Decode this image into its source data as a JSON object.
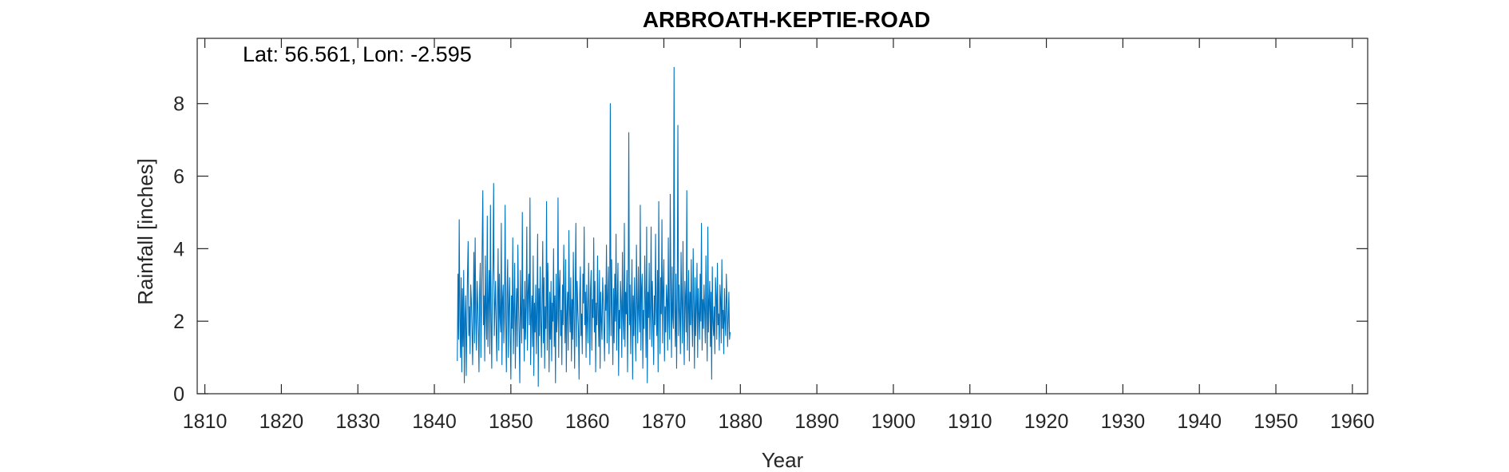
{
  "chart_data": {
    "type": "line",
    "title": "ARBROATH-KEPTIE-ROAD",
    "annotation": "Lat: 56.561, Lon: -2.595",
    "xlabel": "Year",
    "ylabel": "Rainfall [inches]",
    "xlim": [
      1809,
      1962
    ],
    "ylim": [
      0,
      9.8
    ],
    "x_ticks": [
      1810,
      1820,
      1830,
      1840,
      1850,
      1860,
      1870,
      1880,
      1890,
      1900,
      1910,
      1920,
      1930,
      1940,
      1950,
      1960
    ],
    "y_ticks": [
      0,
      2,
      4,
      6,
      8
    ],
    "grid": false,
    "series": [
      {
        "color": "#0072BD",
        "x_start": 1843.0,
        "x_step": 0.08333,
        "values": [
          0.9,
          3.3,
          1.5,
          4.8,
          2.1,
          1.0,
          3.2,
          0.6,
          2.9,
          1.3,
          3.4,
          0.3,
          2.1,
          2.7,
          0.5,
          1.9,
          3.3,
          4.2,
          1.6,
          2.4,
          1.1,
          3.0,
          2.6,
          1.8,
          0.8,
          2.2,
          3.9,
          1.4,
          4.3,
          2.0,
          1.2,
          3.1,
          2.5,
          1.7,
          0.6,
          2.8,
          3.6,
          1.0,
          2.3,
          4.1,
          5.6,
          1.9,
          2.7,
          0.9,
          3.8,
          2.2,
          1.5,
          4.9,
          1.3,
          2.6,
          3.4,
          1.1,
          5.2,
          2.0,
          0.7,
          2.9,
          3.5,
          5.8,
          1.6,
          2.4,
          3.1,
          1.8,
          0.9,
          2.5,
          4.0,
          1.2,
          3.3,
          2.1,
          1.7,
          4.7,
          0.8,
          2.6,
          3.0,
          1.4,
          2.2,
          5.2,
          1.9,
          0.6,
          2.8,
          3.7,
          1.0,
          2.4,
          3.2,
          1.5,
          0.4,
          2.7,
          1.8,
          4.3,
          1.1,
          2.3,
          3.6,
          0.7,
          2.0,
          2.9,
          1.3,
          4.1,
          2.5,
          1.6,
          0.3,
          3.4,
          2.2,
          1.4,
          5.0,
          1.8,
          2.6,
          0.9,
          3.1,
          1.5,
          2.4,
          4.6,
          1.2,
          2.8,
          3.3,
          1.9,
          5.4,
          0.8,
          2.1,
          2.7,
          1.3,
          3.8,
          0.5,
          2.5,
          1.7,
          3.0,
          1.1,
          2.3,
          4.4,
          0.2,
          2.9,
          1.6,
          3.5,
          2.0,
          1.0,
          2.6,
          4.2,
          1.4,
          3.2,
          0.7,
          2.4,
          1.8,
          5.3,
          1.2,
          3.6,
          2.2,
          0.6,
          2.8,
          1.5,
          3.1,
          0.9,
          2.5,
          2.0,
          4.0,
          1.3,
          2.7,
          0.3,
          3.3,
          1.7,
          2.1,
          5.4,
          1.0,
          2.9,
          3.4,
          1.6,
          2.3,
          0.8,
          3.0,
          1.9,
          4.1,
          2.6,
          1.4,
          3.7,
          0.6,
          2.2,
          2.8,
          1.2,
          4.5,
          2.4,
          1.7,
          3.2,
          0.9,
          2.6,
          1.5,
          3.9,
          2.1,
          0.7,
          2.9,
          4.7,
          1.3,
          3.1,
          2.3,
          1.8,
          0.4,
          2.7,
          3.5,
          1.6,
          2.2,
          1.1,
          3.3,
          2.5,
          4.6,
          1.9,
          2.8,
          1.0,
          3.0,
          2.0,
          1.4,
          3.6,
          2.4,
          0.8,
          2.9,
          3.4,
          1.2,
          2.6,
          2.1,
          4.3,
          1.7,
          3.1,
          0.6,
          2.5,
          1.9,
          3.8,
          2.2,
          1.3,
          3.4,
          0.7,
          2.8,
          2.0,
          1.5,
          3.2,
          2.6,
          1.8,
          0.9,
          3.0,
          2.3,
          4.1,
          1.4,
          2.7,
          3.5,
          1.1,
          2.4,
          8.0,
          1.6,
          3.7,
          2.2,
          0.8,
          2.9,
          1.4,
          3.3,
          2.0,
          4.4,
          1.2,
          2.6,
          3.6,
          0.5,
          2.3,
          1.8,
          3.1,
          2.5,
          1.0,
          3.9,
          2.1,
          1.5,
          4.7,
          1.3,
          2.8,
          2.2,
          3.4,
          0.6,
          2.6,
          7.2,
          1.9,
          3.0,
          1.1,
          2.4,
          3.7,
          0.4,
          2.7,
          1.6,
          3.2,
          2.0,
          0.9,
          4.1,
          2.5,
          1.4,
          3.5,
          2.2,
          1.7,
          5.2,
          1.2,
          2.9,
          3.3,
          0.7,
          2.3,
          1.8,
          3.8,
          2.6,
          1.0,
          4.6,
          0.3,
          2.8,
          2.1,
          3.6,
          1.5,
          2.4,
          4.6,
          1.3,
          3.1,
          2.0,
          0.8,
          2.7,
          1.9,
          4.4,
          2.3,
          1.6,
          3.4,
          0.6,
          5.3,
          2.5,
          1.1,
          3.2,
          2.2,
          4.8,
          1.4,
          2.9,
          3.7,
          0.9,
          2.4,
          1.7,
          3.0,
          2.6,
          1.2,
          4.3,
          2.0,
          1.5,
          5.5,
          2.8,
          1.0,
          3.5,
          2.1,
          1.8,
          9.0,
          2.4,
          1.3,
          3.3,
          0.7,
          2.7,
          7.4,
          1.6,
          3.0,
          2.2,
          1.1,
          3.9,
          2.5,
          1.4,
          4.2,
          2.0,
          0.8,
          3.1,
          2.6,
          1.7,
          5.6,
          1.2,
          2.3,
          3.4,
          0.9,
          2.8,
          1.9,
          3.7,
          2.1,
          1.3,
          4.0,
          2.5,
          0.7,
          3.2,
          1.6,
          2.4,
          3.6,
          1.0,
          2.9,
          2.2,
          1.5,
          3.3,
          2.0,
          4.7,
          1.2,
          2.6,
          1.8,
          3.0,
          2.3,
          1.4,
          3.8,
          2.1,
          0.9,
          4.6,
          1.7,
          2.5,
          3.1,
          1.3,
          2.8,
          0.4,
          3.5,
          2.0,
          1.6,
          2.4,
          1.1,
          3.2,
          2.7,
          1.5,
          3.6,
          1.9,
          2.2,
          1.2,
          3.0,
          2.6,
          1.4,
          3.7,
          1.8,
          2.3,
          1.1,
          2.9,
          2.0,
          1.6,
          3.3,
          2.5,
          1.3,
          2.1,
          2.8,
          1.5,
          1.7
        ]
      }
    ]
  }
}
